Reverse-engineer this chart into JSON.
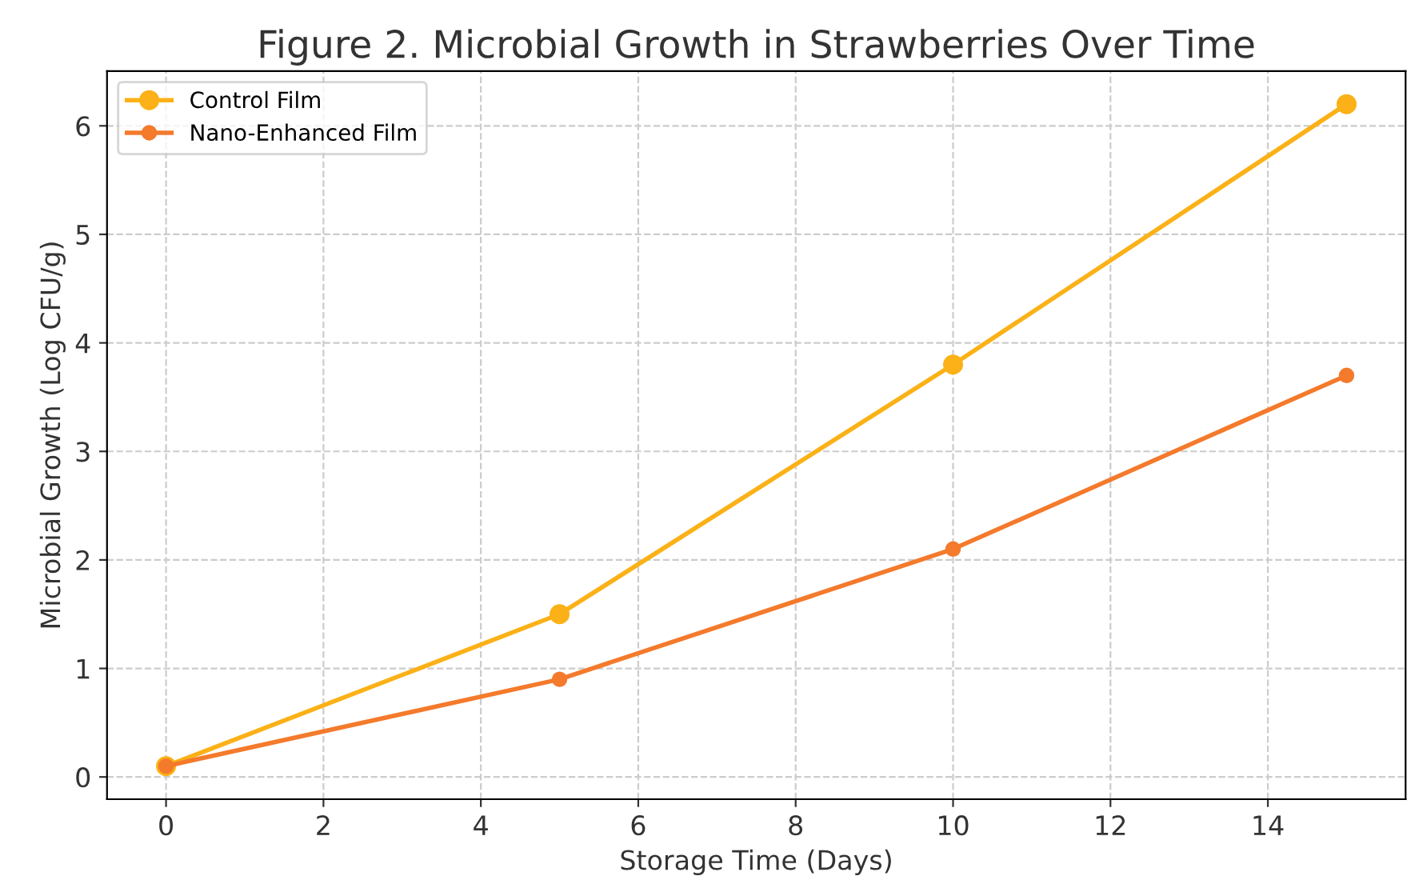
{
  "chart_data": {
    "type": "line",
    "title": "Figure 2. Microbial Growth in Strawberries Over Time",
    "xlabel": "Storage Time (Days)",
    "ylabel": "Microbial Growth (Log CFU/g)",
    "x": [
      0,
      5,
      10,
      15
    ],
    "series": [
      {
        "name": "Control Film",
        "color": "#fbb117",
        "values": [
          0.1,
          1.5,
          3.8,
          6.2
        ]
      },
      {
        "name": "Nano-Enhanced Film",
        "color": "#f47a2c",
        "values": [
          0.1,
          0.9,
          2.1,
          3.7
        ]
      }
    ],
    "xlim": [
      -0.75,
      15.75
    ],
    "xticks": [
      0,
      2,
      4,
      6,
      8,
      10,
      12,
      14
    ],
    "ylim": [
      -0.205,
      6.505
    ],
    "yticks": [
      0,
      1,
      2,
      3,
      4,
      5,
      6
    ],
    "grid": true,
    "legend": "top left",
    "marker": "circle",
    "line_style": "solid"
  }
}
